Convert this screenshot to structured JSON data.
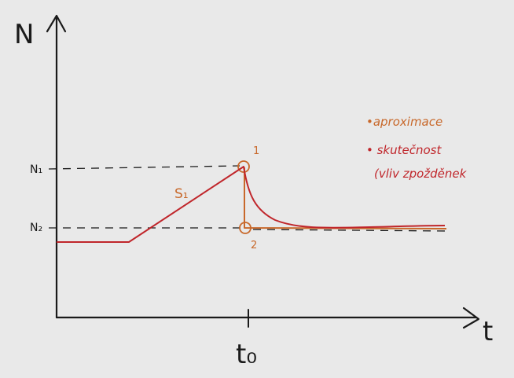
{
  "axes": {
    "y_label": "N",
    "x_label": "t"
  },
  "levels": {
    "n1": "N₁",
    "n2": "N₂"
  },
  "t0_label": "t₀",
  "s1_label": "S₁",
  "point_labels": {
    "p1": "1",
    "p2": "2"
  },
  "notes": {
    "line1": "•aproximace",
    "line2": "• skutečnost",
    "line3": "(vliv zpožděnek"
  },
  "colors": {
    "ink": "#1a1a1a",
    "red": "#c0262b",
    "orange": "#c8682a",
    "background": "#e9e9e9"
  }
}
